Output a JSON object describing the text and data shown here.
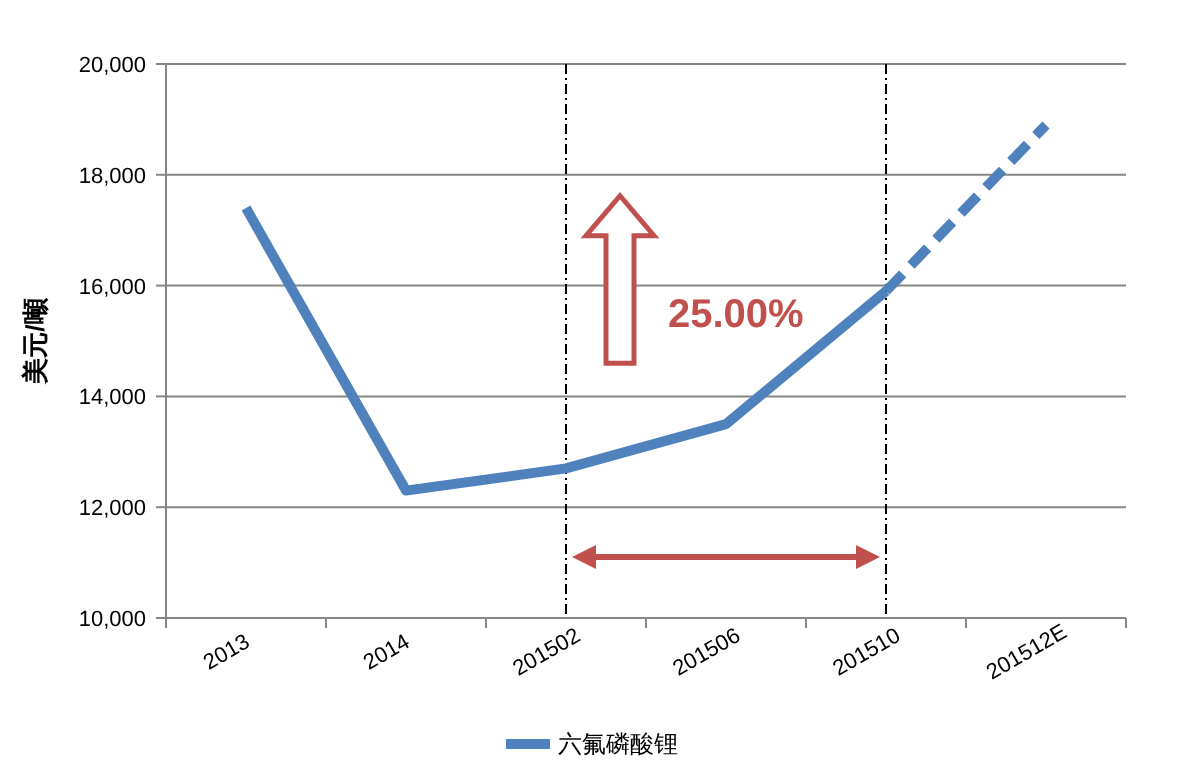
{
  "chart_data": {
    "type": "line",
    "ylabel": "美元/噸",
    "categories": [
      "2013",
      "2014",
      "201502",
      "201506",
      "201510",
      "201512E"
    ],
    "series": [
      {
        "name": "六氟磷酸锂",
        "color": "#4f81bd",
        "values": [
          17400,
          12300,
          12700,
          13500,
          15900,
          null
        ],
        "line_style": "solid"
      },
      {
        "color": "#4f81bd",
        "values": [
          null,
          null,
          null,
          null,
          15900,
          18900
        ],
        "line_style": "dashed"
      }
    ],
    "ylim": [
      10000,
      20000
    ],
    "yticks": [
      {
        "value": 10000,
        "label": "10,000"
      },
      {
        "value": 12000,
        "label": "12,000"
      },
      {
        "value": 14000,
        "label": "14,000"
      },
      {
        "value": 16000,
        "label": "16,000"
      },
      {
        "value": 18000,
        "label": "18,000"
      },
      {
        "value": 20000,
        "label": "20,000"
      }
    ],
    "ref_lines": [
      {
        "axis": "x",
        "value": "201502",
        "color": "#000000",
        "line_style": "dashed"
      },
      {
        "axis": "x",
        "value": "201510",
        "color": "#000000",
        "line_style": "dashed"
      }
    ],
    "annotations": [
      "25.00%"
    ],
    "grid": "y",
    "legend": "bottom",
    "marker": "none"
  }
}
